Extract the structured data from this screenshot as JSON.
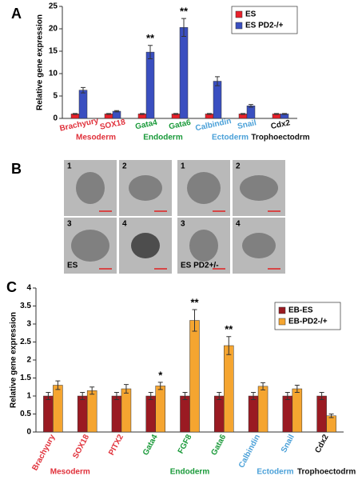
{
  "panel_labels": [
    "A",
    "B",
    "C"
  ],
  "micrographs": {
    "labels": [
      "1",
      "2",
      "3",
      "4",
      "1",
      "2",
      "3",
      "4"
    ],
    "groups": [
      "ES",
      "ES PD2+/-"
    ]
  },
  "chart_data": [
    {
      "type": "bar",
      "ylabel": "Relative gene expression",
      "categories": [
        "Brachyury",
        "SOX18",
        "Gata4",
        "Gata6",
        "Calbindin",
        "Snail",
        "Cdx2"
      ],
      "category_colors": [
        "#e0303a",
        "#e0303a",
        "#1a9a3a",
        "#1a9a3a",
        "#4aa0d8",
        "#4aa0d8",
        "#111111"
      ],
      "series": [
        {
          "name": "ES",
          "color": "#e8202a",
          "values": [
            1,
            1,
            1,
            1,
            1,
            1,
            1
          ],
          "error": [
            0.1,
            0.1,
            0.1,
            0.1,
            0.1,
            0.1,
            0.1
          ]
        },
        {
          "name": "ES PD2-/+",
          "color": "#3a4fc0",
          "values": [
            6.3,
            1.6,
            14.8,
            20.3,
            8.3,
            2.8,
            1.0
          ],
          "error": [
            0.6,
            0.15,
            1.5,
            2.0,
            1.0,
            0.3,
            0.1
          ]
        }
      ],
      "ylim": [
        0,
        25
      ],
      "yticks": [
        0,
        5,
        10,
        15,
        20,
        25
      ],
      "annotations": [
        {
          "text": "**",
          "category": "Gata4"
        },
        {
          "text": "**",
          "category": "Gata6"
        }
      ],
      "groups": [
        {
          "label": "Mesoderm",
          "color": "#e0303a",
          "categories": [
            "Brachyury",
            "SOX18"
          ]
        },
        {
          "label": "Endoderm",
          "color": "#1a9a3a",
          "categories": [
            "Gata4",
            "Gata6"
          ]
        },
        {
          "label": "Ectoderm",
          "color": "#4aa0d8",
          "categories": [
            "Calbindin",
            "Snail"
          ]
        },
        {
          "label": "Trophoectodrm",
          "color": "#111111",
          "categories": [
            "Cdx2"
          ]
        }
      ],
      "legend": "top-right"
    },
    {
      "type": "bar",
      "ylabel": "Relative gene expression",
      "categories": [
        "Brachyury",
        "SOX18",
        "PITX2",
        "Gata4",
        "FGF8",
        "Gata6",
        "Calbindin",
        "Snail",
        "Cdx2"
      ],
      "category_colors": [
        "#e0303a",
        "#e0303a",
        "#e0303a",
        "#1a9a3a",
        "#1a9a3a",
        "#1a9a3a",
        "#4aa0d8",
        "#4aa0d8",
        "#111111"
      ],
      "series": [
        {
          "name": "EB-ES",
          "color": "#9a1a22",
          "values": [
            1,
            1,
            1,
            1,
            1,
            1,
            1,
            1,
            1
          ],
          "error": [
            0.1,
            0.1,
            0.1,
            0.1,
            0.1,
            0.1,
            0.1,
            0.1,
            0.1
          ]
        },
        {
          "name": "EB-PD2-/+",
          "color": "#f5a530",
          "values": [
            1.3,
            1.15,
            1.2,
            1.28,
            3.1,
            2.4,
            1.27,
            1.2,
            0.45
          ],
          "error": [
            0.12,
            0.1,
            0.12,
            0.1,
            0.3,
            0.25,
            0.1,
            0.1,
            0.05
          ]
        }
      ],
      "ylim": [
        0,
        4
      ],
      "yticks": [
        0,
        0.5,
        1,
        1.5,
        2,
        2.5,
        3,
        3.5,
        4
      ],
      "annotations": [
        {
          "text": "*",
          "category": "Gata4"
        },
        {
          "text": "**",
          "category": "FGF8"
        },
        {
          "text": "**",
          "category": "Gata6"
        }
      ],
      "groups": [
        {
          "label": "Mesoderm",
          "color": "#e0303a",
          "categories": [
            "Brachyury",
            "SOX18"
          ]
        },
        {
          "label": "Endoderm",
          "color": "#1a9a3a",
          "categories": [
            "Gata4",
            "Gata6"
          ]
        },
        {
          "label": "Ectoderm",
          "color": "#4aa0d8",
          "categories": [
            "Calbindin",
            "Snail"
          ]
        },
        {
          "label": "Trophoectodrm",
          "color": "#111111",
          "categories": [
            "Cdx2"
          ]
        }
      ],
      "legend": "top-right"
    }
  ]
}
